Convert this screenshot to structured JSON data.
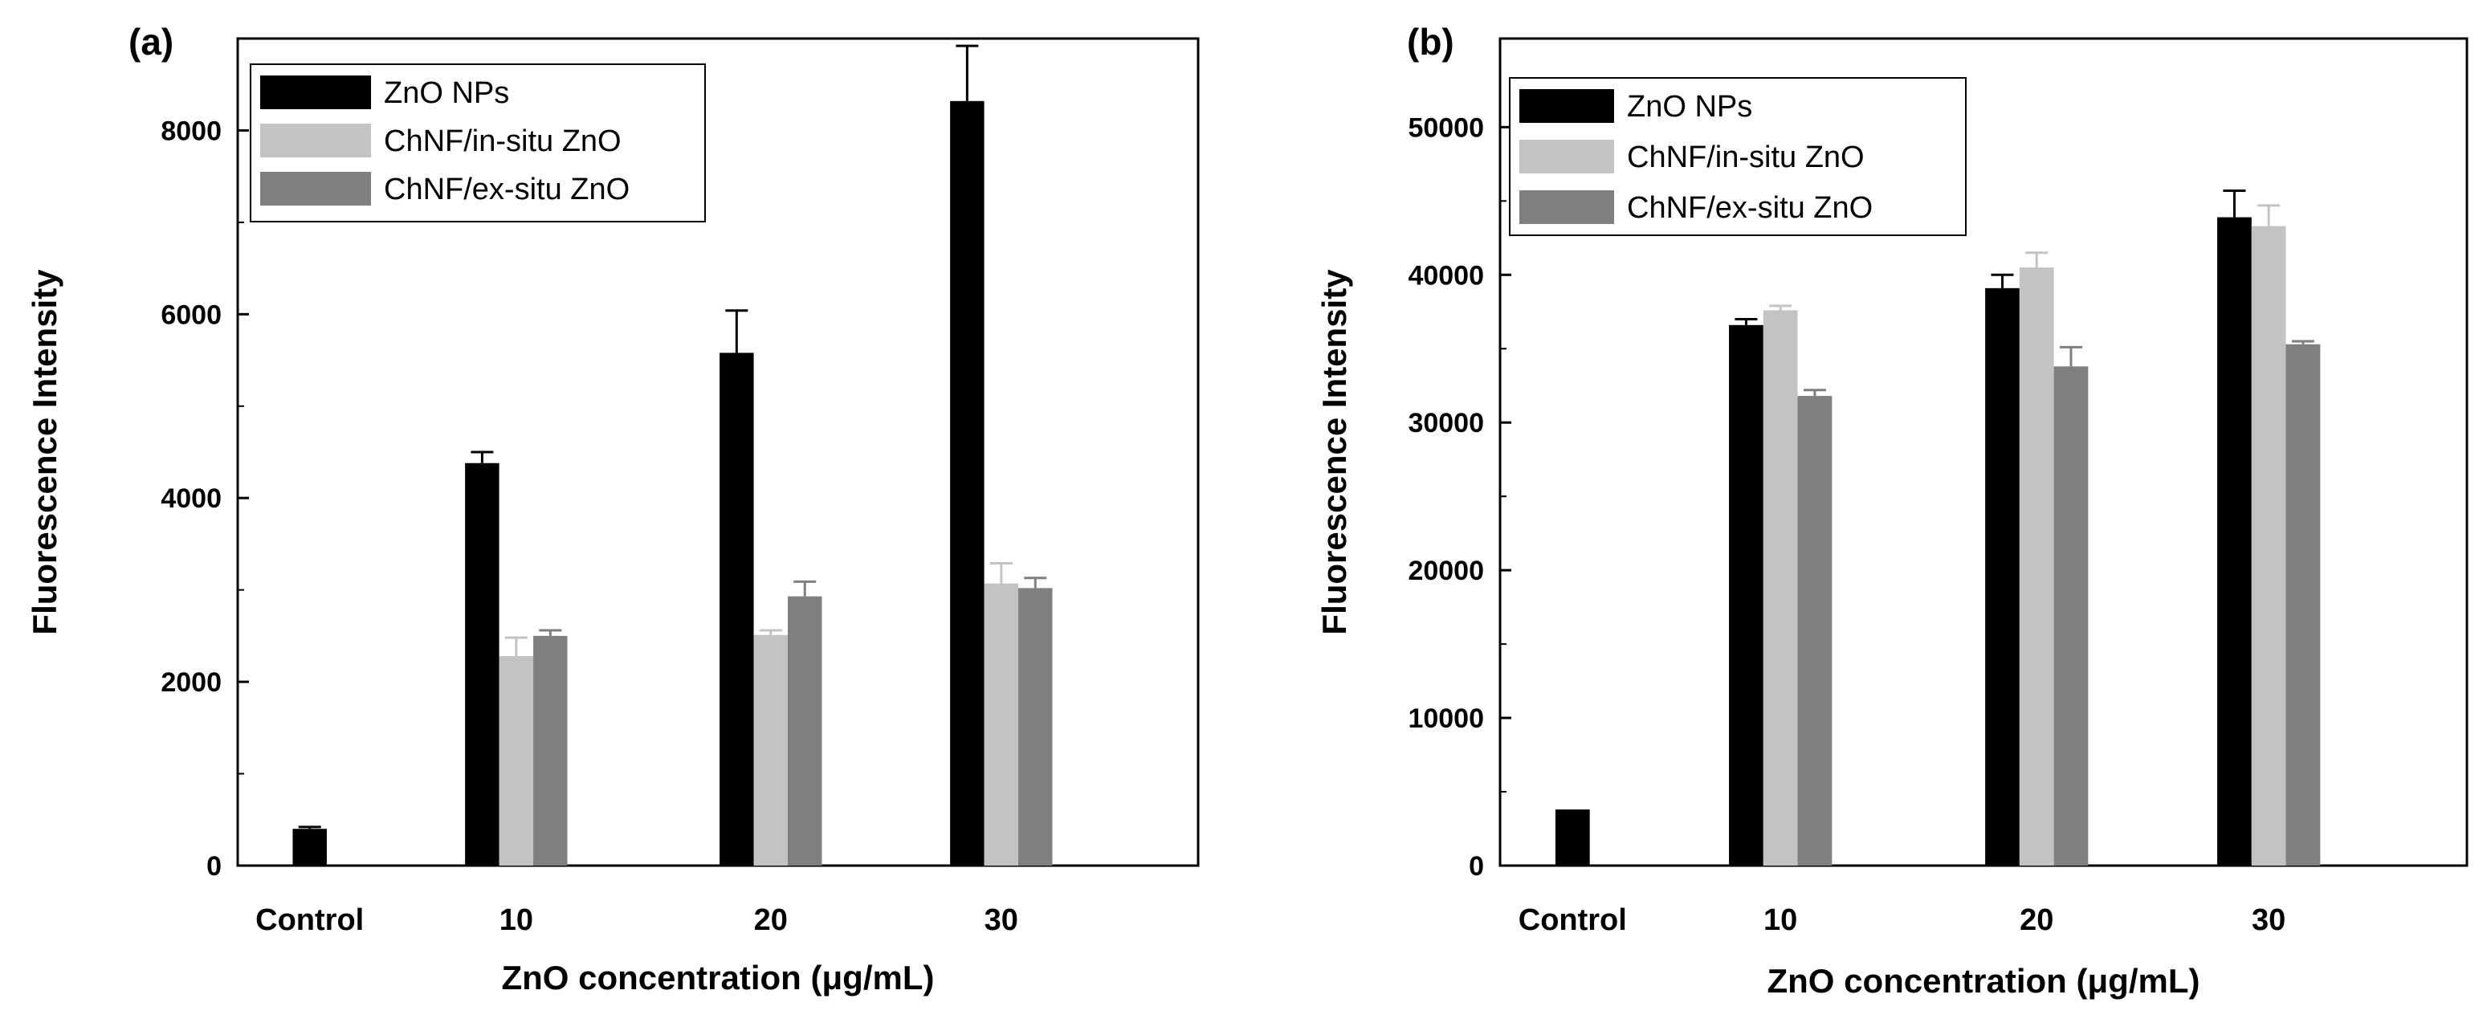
{
  "figure": {
    "colors": {
      "ZnO NPs": "#000000",
      "ChNF/in-situ ZnO": "#c3c3c3",
      "ChNF/ex-situ ZnO": "#7f7f7f"
    }
  },
  "chart_data": [
    {
      "type": "bar",
      "panel": "(a)",
      "xlabel": "ZnO concentration (μg/mL)",
      "ylabel": "Fluorescence Intensity",
      "ylim": [
        0,
        9000
      ],
      "yticks": [
        0,
        2000,
        4000,
        6000,
        8000
      ],
      "ytick_labels": [
        "0",
        "2000",
        "4000",
        "6000",
        "8000"
      ],
      "legend_position": "top-left",
      "categories": [
        "Control",
        "10",
        "20",
        "30"
      ],
      "series": [
        {
          "name": "ZnO NPs",
          "values": [
            400,
            4380,
            5580,
            8320
          ],
          "errors": [
            20,
            120,
            460,
            600
          ]
        },
        {
          "name": "ChNF/in-situ ZnO",
          "values": [
            null,
            2280,
            2510,
            3070
          ],
          "errors": [
            null,
            200,
            50,
            220
          ]
        },
        {
          "name": "ChNF/ex-situ ZnO",
          "values": [
            null,
            2500,
            2930,
            3020
          ],
          "errors": [
            null,
            60,
            160,
            110
          ]
        }
      ]
    },
    {
      "type": "bar",
      "panel": "(b)",
      "xlabel": "ZnO concentration (μg/mL)",
      "ylabel": "Fluorescence Intensity",
      "ylim": [
        0,
        56000
      ],
      "yticks": [
        0,
        10000,
        20000,
        30000,
        40000,
        50000
      ],
      "ytick_labels": [
        "0",
        "10000",
        "20000",
        "30000",
        "40000",
        "50000"
      ],
      "legend_position": "top-left",
      "categories": [
        "Control",
        "10",
        "20",
        "30"
      ],
      "series": [
        {
          "name": "ZnO NPs",
          "values": [
            3800,
            36600,
            39100,
            43900
          ],
          "errors": [
            0,
            400,
            900,
            1800
          ]
        },
        {
          "name": "ChNF/in-situ ZnO",
          "values": [
            null,
            37600,
            40500,
            43300
          ],
          "errors": [
            null,
            300,
            1000,
            1400
          ]
        },
        {
          "name": "ChNF/ex-situ ZnO",
          "values": [
            null,
            31800,
            33800,
            35300
          ],
          "errors": [
            null,
            400,
            1300,
            200
          ]
        }
      ]
    }
  ]
}
